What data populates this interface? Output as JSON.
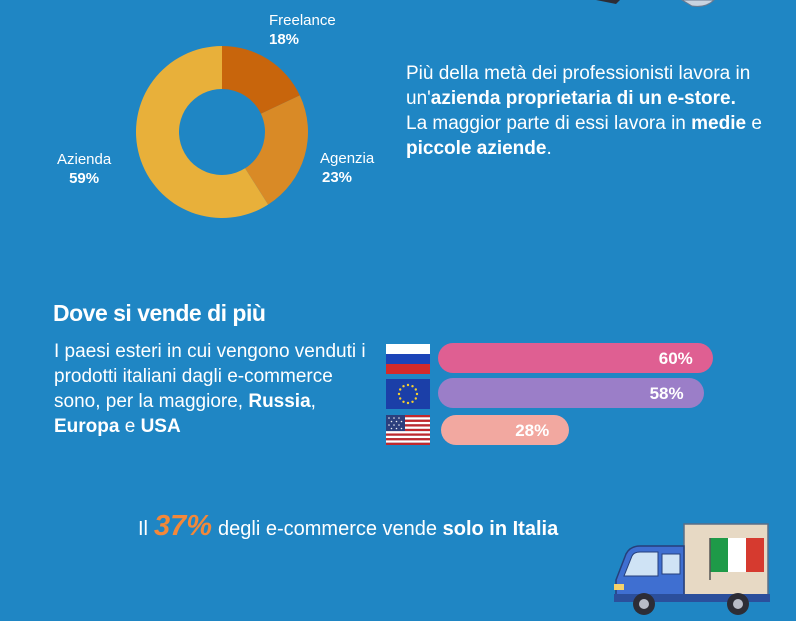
{
  "donut": {
    "slices": [
      {
        "label": "Freelance",
        "value": "18%",
        "pct": 18,
        "color": "#c8650c"
      },
      {
        "label": "Agenzia",
        "value": "23%",
        "pct": 23,
        "color": "#d98a26"
      },
      {
        "label": "Azienda",
        "value": "59%",
        "pct": 59,
        "color": "#e8b03a"
      }
    ]
  },
  "top_text": {
    "part1": "Più della metà dei professionisti lavora in un'",
    "bold1": "azienda proprietaria di un e-store.",
    "part2": "La maggior parte di essi lavora in ",
    "bold2": "medie",
    "part3": " e ",
    "bold3": "piccole aziende",
    "part4": "."
  },
  "section_title": "Dove si vende di più",
  "countries_text": {
    "part1": "I paesi esteri in cui vengono venduti i prodotti italiani dagli e-commerce sono, per la maggiore, ",
    "bold1": "Russia",
    "part2": ", ",
    "bold2": "Europa",
    "part3": " e ",
    "bold3": "USA"
  },
  "bars": [
    {
      "country": "russia",
      "label": "60%",
      "value": 60,
      "color": "#df5f92"
    },
    {
      "country": "europe",
      "label": "58%",
      "value": 58,
      "color": "#9b7ec8"
    },
    {
      "country": "usa",
      "label": "28%",
      "value": 28,
      "color": "#f2a8a0"
    }
  ],
  "bottom": {
    "prefix": "Il",
    "pct": "37%",
    "middle": "degli e-commerce vende",
    "bold": "solo in Italia"
  }
}
